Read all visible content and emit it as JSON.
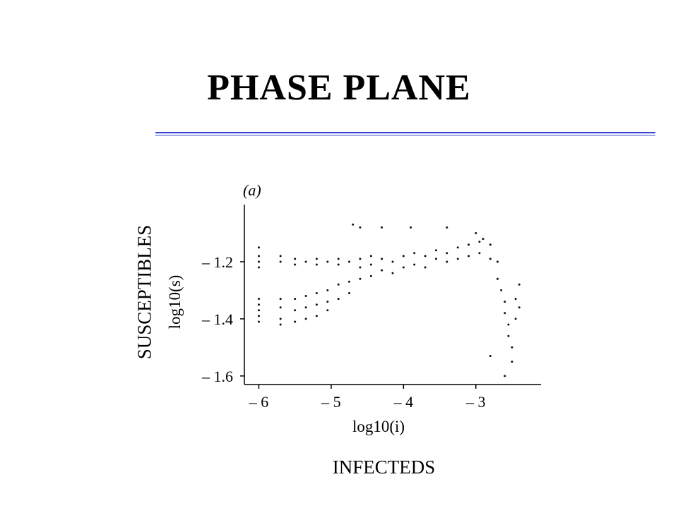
{
  "title": "PHASE PLANE",
  "rule_color": "#3344cc",
  "side_label": "SUSCEPTIBLES",
  "bottom_label": "INFECTEDS",
  "chart_data": {
    "type": "scatter",
    "panel_label": "(a)",
    "xlabel": "log10(i)",
    "ylabel": "log10(s)",
    "xlim": [
      -6.2,
      -2.1
    ],
    "ylim": [
      -1.63,
      -1.0
    ],
    "x_ticks": [
      -6,
      -5,
      -4,
      -3
    ],
    "x_tick_labels": [
      "– 6",
      "– 5",
      "– 4",
      "– 3"
    ],
    "y_ticks": [
      -1.2,
      -1.4,
      -1.6
    ],
    "y_tick_labels": [
      "– 1.2",
      "– 1.4",
      "– 1.6"
    ],
    "point_color": "#111111",
    "series": [
      {
        "points": [
          [
            -6,
            -1.2
          ],
          [
            -6,
            -1.18
          ],
          [
            -6,
            -1.22
          ],
          [
            -6,
            -1.15
          ],
          [
            -6,
            -1.33
          ],
          [
            -6,
            -1.35
          ],
          [
            -6,
            -1.37
          ],
          [
            -6,
            -1.39
          ],
          [
            -6,
            -1.41
          ],
          [
            -5.7,
            -1.18
          ],
          [
            -5.7,
            -1.2
          ],
          [
            -5.7,
            -1.33
          ],
          [
            -5.7,
            -1.36
          ],
          [
            -5.7,
            -1.4
          ],
          [
            -5.7,
            -1.42
          ],
          [
            -5.5,
            -1.19
          ],
          [
            -5.5,
            -1.21
          ],
          [
            -5.5,
            -1.33
          ],
          [
            -5.5,
            -1.37
          ],
          [
            -5.5,
            -1.41
          ],
          [
            -5.35,
            -1.2
          ],
          [
            -5.35,
            -1.32
          ],
          [
            -5.35,
            -1.36
          ],
          [
            -5.35,
            -1.4
          ],
          [
            -5.2,
            -1.19
          ],
          [
            -5.2,
            -1.21
          ],
          [
            -5.2,
            -1.31
          ],
          [
            -5.2,
            -1.35
          ],
          [
            -5.2,
            -1.39
          ],
          [
            -5.05,
            -1.2
          ],
          [
            -5.05,
            -1.3
          ],
          [
            -5.05,
            -1.34
          ],
          [
            -5.05,
            -1.37
          ],
          [
            -4.9,
            -1.19
          ],
          [
            -4.9,
            -1.21
          ],
          [
            -4.9,
            -1.28
          ],
          [
            -4.9,
            -1.33
          ],
          [
            -4.75,
            -1.2
          ],
          [
            -4.75,
            -1.27
          ],
          [
            -4.75,
            -1.31
          ],
          [
            -4.6,
            -1.19
          ],
          [
            -4.6,
            -1.22
          ],
          [
            -4.6,
            -1.26
          ],
          [
            -4.45,
            -1.18
          ],
          [
            -4.45,
            -1.21
          ],
          [
            -4.45,
            -1.25
          ],
          [
            -4.3,
            -1.19
          ],
          [
            -4.3,
            -1.23
          ],
          [
            -4.15,
            -1.2
          ],
          [
            -4.15,
            -1.24
          ],
          [
            -4.0,
            -1.18
          ],
          [
            -4.0,
            -1.22
          ],
          [
            -3.85,
            -1.17
          ],
          [
            -3.85,
            -1.21
          ],
          [
            -3.7,
            -1.18
          ],
          [
            -3.7,
            -1.22
          ],
          [
            -3.55,
            -1.16
          ],
          [
            -3.55,
            -1.19
          ],
          [
            -3.4,
            -1.17
          ],
          [
            -3.4,
            -1.2
          ],
          [
            -3.25,
            -1.15
          ],
          [
            -3.25,
            -1.19
          ],
          [
            -3.1,
            -1.14
          ],
          [
            -3.1,
            -1.18
          ],
          [
            -2.95,
            -1.13
          ],
          [
            -2.95,
            -1.17
          ],
          [
            -2.8,
            -1.14
          ],
          [
            -2.8,
            -1.19
          ],
          [
            -2.7,
            -1.2
          ],
          [
            -2.7,
            -1.26
          ],
          [
            -2.65,
            -1.3
          ],
          [
            -2.6,
            -1.34
          ],
          [
            -2.6,
            -1.38
          ],
          [
            -2.55,
            -1.42
          ],
          [
            -2.55,
            -1.46
          ],
          [
            -2.5,
            -1.5
          ],
          [
            -2.5,
            -1.55
          ],
          [
            -2.45,
            -1.4
          ],
          [
            -2.45,
            -1.33
          ],
          [
            -2.4,
            -1.28
          ],
          [
            -2.4,
            -1.36
          ],
          [
            -4.7,
            -1.07
          ],
          [
            -4.6,
            -1.08
          ],
          [
            -4.3,
            -1.08
          ],
          [
            -3.9,
            -1.08
          ],
          [
            -3.4,
            -1.08
          ],
          [
            -3.0,
            -1.1
          ],
          [
            -2.9,
            -1.12
          ],
          [
            -2.8,
            -1.53
          ],
          [
            -2.6,
            -1.6
          ]
        ]
      }
    ]
  }
}
